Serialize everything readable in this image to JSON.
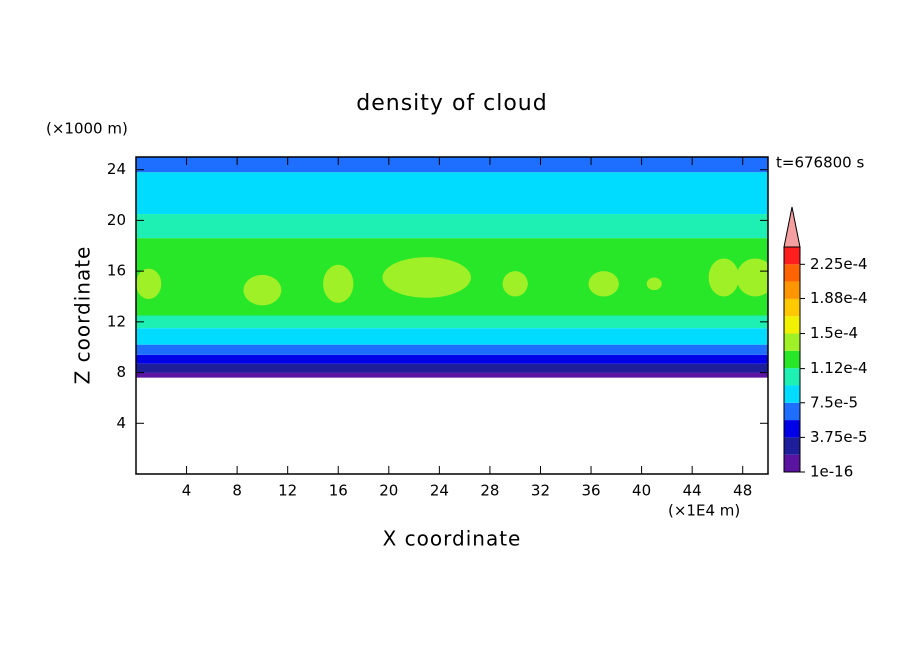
{
  "chart_data": {
    "type": "contour",
    "title": "density of cloud",
    "xlabel": "X coordinate",
    "ylabel": "Z coordinate",
    "xunit": "(×1E4 m)",
    "yunit": "(×1000 m)",
    "annotation": "t=676800 s",
    "xlim": [
      0,
      50
    ],
    "ylim": [
      0,
      25
    ],
    "xticks": [
      4,
      8,
      12,
      16,
      20,
      24,
      28,
      32,
      36,
      40,
      44,
      48
    ],
    "yticks": [
      4,
      8,
      12,
      16,
      20,
      24
    ],
    "levels": [
      1e-16,
      1.875e-05,
      3.75e-05,
      5.625e-05,
      7.5e-05,
      9.375e-05,
      0.0001125,
      0.00013125,
      0.00015,
      0.00016875,
      0.0001875,
      0.00020625,
      0.000225,
      0.00024375
    ],
    "colors": [
      "#5a14a0",
      "#1e1e9b",
      "#0000e6",
      "#1e6eff",
      "#00dcff",
      "#1ef0b4",
      "#28e628",
      "#a0f028",
      "#f0f000",
      "#ffc800",
      "#ff9600",
      "#ff6400",
      "#ff1e1e"
    ],
    "extend_color": "#f4a0a0",
    "colorbar_ticks": [
      1e-16,
      {
        "value": 3.75e-05,
        "label": "3.75e-5"
      },
      {
        "value": 7.5e-05,
        "label": "7.5e-5"
      },
      {
        "value": 0.000112,
        "label": "1.12e-4"
      },
      {
        "value": 0.00015,
        "label": "1.5e-4"
      },
      {
        "value": 0.000188,
        "label": "1.88e-4"
      },
      {
        "value": 0.000225,
        "label": "2.25e-4"
      }
    ],
    "layers": [
      {
        "zlim": [
          7.6,
          8.0
        ],
        "band": 0
      },
      {
        "zlim": [
          8.0,
          8.7
        ],
        "band": 1
      },
      {
        "zlim": [
          8.7,
          9.4
        ],
        "band": 2
      },
      {
        "zlim": [
          9.4,
          10.2
        ],
        "band": 3
      },
      {
        "zlim": [
          10.2,
          11.5
        ],
        "band": 4
      },
      {
        "zlim": [
          11.5,
          12.5
        ],
        "band": 5
      },
      {
        "zlim": [
          12.5,
          18.6
        ],
        "band": 6
      },
      {
        "zlim": [
          18.6,
          20.5
        ],
        "band": 5
      },
      {
        "zlim": [
          20.5,
          23.8
        ],
        "band": 4
      },
      {
        "zlim": [
          23.8,
          25
        ],
        "band": 3
      }
    ],
    "blobs": [
      {
        "x": 1,
        "z": 15,
        "rx": 1,
        "rz": 1.2,
        "band": 7
      },
      {
        "x": 10,
        "z": 14.5,
        "rx": 1.5,
        "rz": 1.2,
        "band": 7
      },
      {
        "x": 16,
        "z": 15,
        "rx": 1.2,
        "rz": 1.5,
        "band": 7
      },
      {
        "x": 23,
        "z": 15.5,
        "rx": 3.5,
        "rz": 1.6,
        "band": 7
      },
      {
        "x": 30,
        "z": 15,
        "rx": 1,
        "rz": 1,
        "band": 7
      },
      {
        "x": 37,
        "z": 15,
        "rx": 1.2,
        "rz": 1,
        "band": 7
      },
      {
        "x": 41,
        "z": 15,
        "rx": 0.6,
        "rz": 0.5,
        "band": 7
      },
      {
        "x": 46.5,
        "z": 15.5,
        "rx": 1.2,
        "rz": 1.5,
        "band": 7
      },
      {
        "x": 49,
        "z": 15.5,
        "rx": 1.5,
        "rz": 1.5,
        "band": 7
      }
    ]
  }
}
